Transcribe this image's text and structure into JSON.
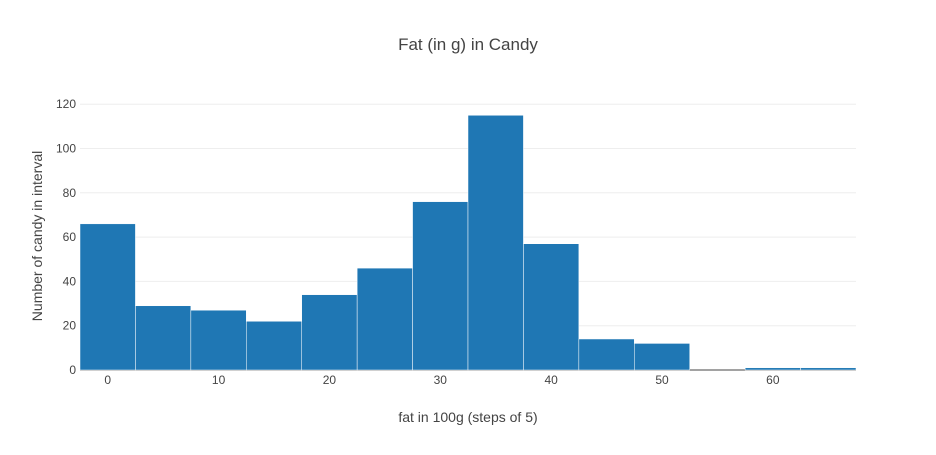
{
  "chart_data": {
    "type": "bar",
    "title": "Fat (in g) in Candy",
    "xlabel": "fat in 100g (steps of 5)",
    "ylabel": "Number of candy in interval",
    "bin_width": 5,
    "bins": [
      {
        "start": -2.5,
        "end": 2.5,
        "count": 66
      },
      {
        "start": 2.5,
        "end": 7.5,
        "count": 29
      },
      {
        "start": 7.5,
        "end": 12.5,
        "count": 27
      },
      {
        "start": 12.5,
        "end": 17.5,
        "count": 22
      },
      {
        "start": 17.5,
        "end": 22.5,
        "count": 34
      },
      {
        "start": 22.5,
        "end": 27.5,
        "count": 46
      },
      {
        "start": 27.5,
        "end": 32.5,
        "count": 76
      },
      {
        "start": 32.5,
        "end": 37.5,
        "count": 115
      },
      {
        "start": 37.5,
        "end": 42.5,
        "count": 57
      },
      {
        "start": 42.5,
        "end": 47.5,
        "count": 14
      },
      {
        "start": 47.5,
        "end": 52.5,
        "count": 12
      },
      {
        "start": 52.5,
        "end": 57.5,
        "count": 0
      },
      {
        "start": 57.5,
        "end": 62.5,
        "count": 1
      },
      {
        "start": 62.5,
        "end": 67.5,
        "count": 1
      }
    ],
    "xlim": [
      -2.5,
      67.5
    ],
    "ylim": [
      0,
      121
    ],
    "x_ticks": [
      0,
      10,
      20,
      30,
      40,
      50,
      60
    ],
    "y_ticks": [
      0,
      20,
      40,
      60,
      80,
      100,
      120
    ],
    "grid": true,
    "legend": "none",
    "colors": {
      "bar": "#1f77b4",
      "bar_border": "#ffffff",
      "grid": "#eeeeee",
      "text": "#444444"
    }
  }
}
